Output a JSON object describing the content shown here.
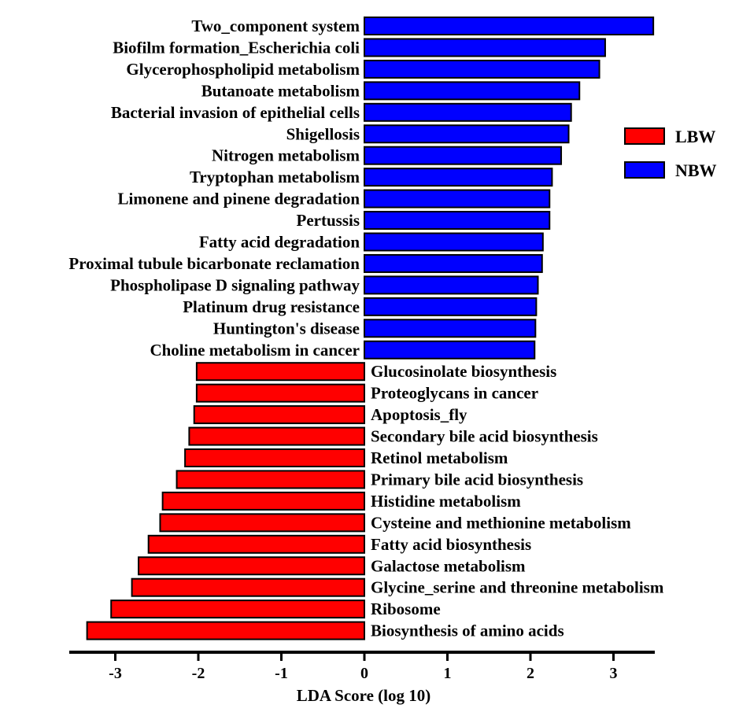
{
  "chart_data": {
    "type": "bar",
    "orientation": "horizontal",
    "xlabel": "LDA Score (log 10)",
    "xlim": [
      -3.5,
      3.5
    ],
    "x_ticks": [
      -3,
      -2,
      -1,
      0,
      1,
      2,
      3
    ],
    "grid": false,
    "legend_position": "right",
    "series": [
      {
        "name": "LBW",
        "color": "#ff0000"
      },
      {
        "name": "NBW",
        "color": "#0000ff"
      }
    ],
    "bars": [
      {
        "label": "Two_component system",
        "value": 3.48,
        "group": "NBW"
      },
      {
        "label": "Biofilm formation_Escherichia coli",
        "value": 2.9,
        "group": "NBW"
      },
      {
        "label": "Glycerophospholipid metabolism",
        "value": 2.83,
        "group": "NBW"
      },
      {
        "label": "Butanoate metabolism",
        "value": 2.59,
        "group": "NBW"
      },
      {
        "label": "Bacterial invasion of epithelial cells",
        "value": 2.49,
        "group": "NBW"
      },
      {
        "label": "Shigellosis",
        "value": 2.46,
        "group": "NBW"
      },
      {
        "label": "Nitrogen metabolism",
        "value": 2.37,
        "group": "NBW"
      },
      {
        "label": "Tryptophan metabolism",
        "value": 2.26,
        "group": "NBW"
      },
      {
        "label": "Limonene and pinene degradation",
        "value": 2.23,
        "group": "NBW"
      },
      {
        "label": "Pertussis",
        "value": 2.23,
        "group": "NBW"
      },
      {
        "label": "Fatty acid degradation",
        "value": 2.15,
        "group": "NBW"
      },
      {
        "label": "Proximal tubule bicarbonate reclamation",
        "value": 2.14,
        "group": "NBW"
      },
      {
        "label": "Phospholipase D signaling pathway",
        "value": 2.09,
        "group": "NBW"
      },
      {
        "label": "Platinum drug resistance",
        "value": 2.07,
        "group": "NBW"
      },
      {
        "label": "Huntington's disease",
        "value": 2.06,
        "group": "NBW"
      },
      {
        "label": "Choline metabolism in cancer",
        "value": 2.05,
        "group": "NBW"
      },
      {
        "label": "Glucosinolate biosynthesis",
        "value": -2.02,
        "group": "LBW"
      },
      {
        "label": "Proteoglycans in cancer",
        "value": -2.02,
        "group": "LBW"
      },
      {
        "label": "Apoptosis_fly",
        "value": -2.05,
        "group": "LBW"
      },
      {
        "label": "Secondary bile acid biosynthesis",
        "value": -2.11,
        "group": "LBW"
      },
      {
        "label": "Retinol metabolism",
        "value": -2.16,
        "group": "LBW"
      },
      {
        "label": "Primary bile acid biosynthesis",
        "value": -2.26,
        "group": "LBW"
      },
      {
        "label": "Histidine metabolism",
        "value": -2.43,
        "group": "LBW"
      },
      {
        "label": "Cysteine and methionine metabolism",
        "value": -2.46,
        "group": "LBW"
      },
      {
        "label": "Fatty acid biosynthesis",
        "value": -2.6,
        "group": "LBW"
      },
      {
        "label": "Galactose metabolism",
        "value": -2.72,
        "group": "LBW"
      },
      {
        "label": "Glycine_serine and threonine metabolism",
        "value": -2.8,
        "group": "LBW"
      },
      {
        "label": "Ribosome",
        "value": -3.05,
        "group": "LBW"
      },
      {
        "label": "Biosynthesis of amino acids",
        "value": -3.34,
        "group": "LBW"
      }
    ]
  }
}
